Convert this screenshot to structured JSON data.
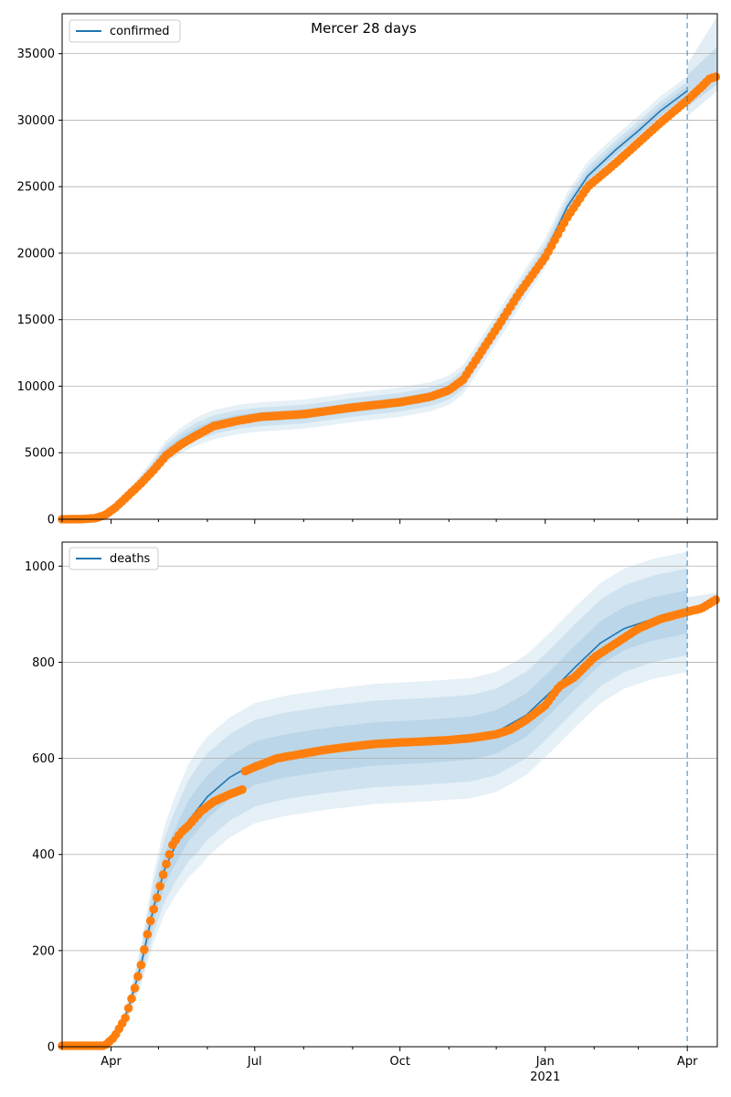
{
  "figure": {
    "title": "Mercer 28 days"
  },
  "colors": {
    "line": "#1f77b4",
    "band": "#1f77b4",
    "observed": "#ff7f0e",
    "grid": "#b0b0b0",
    "forecast_marker": "#1f77b4"
  },
  "chart_data": [
    {
      "type": "line",
      "title": "Mercer 28 days",
      "xlabel": "",
      "ylabel": "",
      "x_range": [
        "2020-03-01",
        "2021-04-20"
      ],
      "ylim": [
        0,
        38000
      ],
      "yticks": [
        0,
        5000,
        10000,
        15000,
        20000,
        25000,
        30000,
        35000
      ],
      "grid": "horizontal",
      "legend": {
        "position": "top-left",
        "entries": [
          "confirmed"
        ]
      },
      "forecast_start": "2021-04-01",
      "series": [
        {
          "name": "confirmed",
          "kind": "model-median",
          "points": [
            [
              "2020-03-01",
              0
            ],
            [
              "2020-03-20",
              60
            ],
            [
              "2020-03-28",
              350
            ],
            [
              "2020-04-05",
              1100
            ],
            [
              "2020-04-15",
              2200
            ],
            [
              "2020-04-25",
              3500
            ],
            [
              "2020-05-05",
              5000
            ],
            [
              "2020-05-15",
              5900
            ],
            [
              "2020-05-25",
              6600
            ],
            [
              "2020-06-05",
              7100
            ],
            [
              "2020-06-20",
              7500
            ],
            [
              "2020-07-05",
              7700
            ],
            [
              "2020-08-01",
              7900
            ],
            [
              "2020-09-01",
              8400
            ],
            [
              "2020-10-01",
              8800
            ],
            [
              "2020-10-20",
              9200
            ],
            [
              "2020-11-01",
              9700
            ],
            [
              "2020-11-10",
              10500
            ],
            [
              "2020-11-20",
              12300
            ],
            [
              "2020-12-01",
              14300
            ],
            [
              "2020-12-15",
              16900
            ],
            [
              "2021-01-01",
              20000
            ],
            [
              "2021-01-15",
              23500
            ],
            [
              "2021-01-28",
              25800
            ],
            [
              "2021-02-15",
              27800
            ],
            [
              "2021-03-01",
              29200
            ],
            [
              "2021-03-15",
              30700
            ],
            [
              "2021-04-01",
              32200
            ]
          ]
        },
        {
          "name": "observed",
          "kind": "points",
          "points": [
            [
              "2020-03-01",
              0
            ],
            [
              "2020-03-15",
              20
            ],
            [
              "2020-03-22",
              80
            ],
            [
              "2020-03-28",
              300
            ],
            [
              "2020-04-04",
              900
            ],
            [
              "2020-04-12",
              1800
            ],
            [
              "2020-04-20",
              2700
            ],
            [
              "2020-04-28",
              3700
            ],
            [
              "2020-05-06",
              4800
            ],
            [
              "2020-05-15",
              5600
            ],
            [
              "2020-05-25",
              6300
            ],
            [
              "2020-06-05",
              7000
            ],
            [
              "2020-06-20",
              7400
            ],
            [
              "2020-07-05",
              7700
            ],
            [
              "2020-08-01",
              7900
            ],
            [
              "2020-09-01",
              8400
            ],
            [
              "2020-10-01",
              8800
            ],
            [
              "2020-10-20",
              9200
            ],
            [
              "2020-11-01",
              9700
            ],
            [
              "2020-11-10",
              10500
            ],
            [
              "2020-11-20",
              12300
            ],
            [
              "2020-12-01",
              14300
            ],
            [
              "2020-12-15",
              16900
            ],
            [
              "2021-01-01",
              19700
            ],
            [
              "2021-01-15",
              22700
            ],
            [
              "2021-01-28",
              25000
            ],
            [
              "2021-02-15",
              26800
            ],
            [
              "2021-03-01",
              28300
            ],
            [
              "2021-03-15",
              29800
            ],
            [
              "2021-04-01",
              31500
            ],
            [
              "2021-04-10",
              32500
            ],
            [
              "2021-04-15",
              33100
            ],
            [
              "2021-04-20",
              33300
            ]
          ]
        }
      ],
      "bands": {
        "inner_halfwidth": 350,
        "mid_halfwidth": 700,
        "outer_halfwidth": 1100,
        "projection_outer": [
          [
            "2021-04-01",
            34200,
            30300
          ],
          [
            "2021-04-20",
            37800,
            32200
          ]
        ],
        "projection_inner": [
          [
            "2021-04-01",
            33400,
            31000
          ],
          [
            "2021-04-20",
            35500,
            32700
          ]
        ]
      }
    },
    {
      "type": "line",
      "title": "",
      "xlabel": "",
      "ylabel": "",
      "x_range": [
        "2020-03-01",
        "2021-04-20"
      ],
      "ylim": [
        0,
        1050
      ],
      "yticks": [
        0,
        200,
        400,
        600,
        800,
        1000
      ],
      "xticks": [
        {
          "date": "2020-04-01",
          "label": "Apr"
        },
        {
          "date": "2020-07-01",
          "label": "Jul"
        },
        {
          "date": "2020-10-01",
          "label": "Oct"
        },
        {
          "date": "2021-01-01",
          "label": "Jan",
          "sublabel": "2021"
        },
        {
          "date": "2021-04-01",
          "label": "Apr"
        }
      ],
      "grid": "horizontal",
      "legend": {
        "position": "top-left",
        "entries": [
          "deaths"
        ]
      },
      "forecast_start": "2021-04-01",
      "series": [
        {
          "name": "deaths",
          "kind": "model-median",
          "points": [
            [
              "2020-03-01",
              0
            ],
            [
              "2020-03-28",
              0
            ],
            [
              "2020-04-05",
              25
            ],
            [
              "2020-04-12",
              80
            ],
            [
              "2020-04-20",
              170
            ],
            [
              "2020-04-28",
              290
            ],
            [
              "2020-05-05",
              370
            ],
            [
              "2020-05-12",
              420
            ],
            [
              "2020-05-20",
              470
            ],
            [
              "2020-06-01",
              520
            ],
            [
              "2020-06-15",
              560
            ],
            [
              "2020-07-01",
              590
            ],
            [
              "2020-07-20",
              605
            ],
            [
              "2020-08-15",
              618
            ],
            [
              "2020-09-15",
              630
            ],
            [
              "2020-10-15",
              635
            ],
            [
              "2020-11-15",
              642
            ],
            [
              "2020-12-01",
              655
            ],
            [
              "2020-12-20",
              690
            ],
            [
              "2021-01-05",
              740
            ],
            [
              "2021-01-20",
              790
            ],
            [
              "2021-02-05",
              840
            ],
            [
              "2021-02-20",
              870
            ],
            [
              "2021-03-10",
              890
            ],
            [
              "2021-04-01",
              905
            ]
          ]
        },
        {
          "name": "observed",
          "kind": "points",
          "points": [
            [
              "2020-03-01",
              2
            ],
            [
              "2020-03-28",
              2
            ],
            [
              "2020-04-03",
              20
            ],
            [
              "2020-04-10",
              60
            ],
            [
              "2020-04-15",
              110
            ],
            [
              "2020-04-20",
              170
            ],
            [
              "2020-04-25",
              250
            ],
            [
              "2020-04-30",
              310
            ],
            [
              "2020-05-05",
              370
            ],
            [
              "2020-05-10",
              420
            ],
            [
              "2020-05-15",
              445
            ],
            [
              "2020-05-20",
              460
            ],
            [
              "2020-05-28",
              490
            ],
            [
              "2020-06-05",
              510
            ],
            [
              "2020-06-15",
              525
            ],
            [
              "2020-06-23",
              535
            ],
            [
              "2020-06-24",
              572
            ],
            [
              "2020-07-01",
              582
            ],
            [
              "2020-07-15",
              600
            ],
            [
              "2020-08-01",
              610
            ],
            [
              "2020-08-15",
              618
            ],
            [
              "2020-09-01",
              625
            ],
            [
              "2020-09-15",
              630
            ],
            [
              "2020-10-01",
              633
            ],
            [
              "2020-10-15",
              635
            ],
            [
              "2020-11-01",
              638
            ],
            [
              "2020-11-15",
              642
            ],
            [
              "2020-12-01",
              650
            ],
            [
              "2020-12-10",
              660
            ],
            [
              "2020-12-20",
              680
            ],
            [
              "2021-01-01",
              710
            ],
            [
              "2021-01-10",
              750
            ],
            [
              "2021-01-20",
              770
            ],
            [
              "2021-02-01",
              810
            ],
            [
              "2021-02-15",
              840
            ],
            [
              "2021-03-01",
              870
            ],
            [
              "2021-03-15",
              890
            ],
            [
              "2021-04-01",
              905
            ],
            [
              "2021-04-10",
              912
            ],
            [
              "2021-04-20",
              932
            ]
          ]
        }
      ],
      "bands": {
        "outer_halfwidth_max": 125,
        "mid_halfwidth_max": 90,
        "inner_halfwidth_max": 45,
        "projection_outer": [
          [
            "2021-04-01",
            935,
            900
          ],
          [
            "2021-04-20",
            945,
            920
          ]
        ]
      }
    }
  ]
}
